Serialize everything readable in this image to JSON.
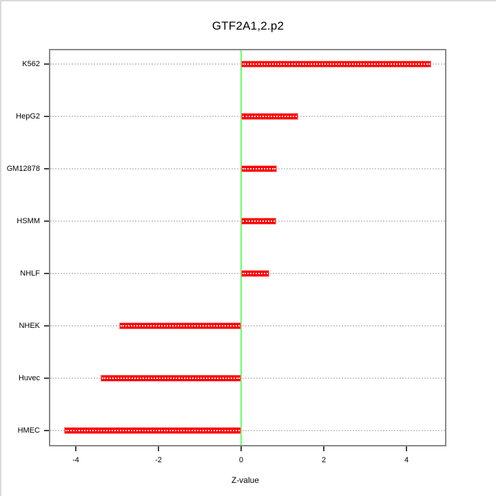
{
  "chart_data": {
    "type": "bar",
    "orientation": "horizontal",
    "title": "GTF2A1,2.p2",
    "xlabel": "Z-value",
    "ylabel": "",
    "categories": [
      "K562",
      "HepG2",
      "GM12878",
      "HSMM",
      "NHLF",
      "NHEK",
      "Huvec",
      "HMEC"
    ],
    "values": [
      4.6,
      1.38,
      0.87,
      0.85,
      0.68,
      -2.95,
      -3.4,
      -4.28
    ],
    "x_ticks": [
      -4,
      -2,
      0,
      2,
      4
    ],
    "xlim": [
      -4.65,
      4.97
    ],
    "grid": "horizontal-dotted",
    "zero_reference_line": 0,
    "legend": "none",
    "colors": {
      "bar_fill": "#ff0000",
      "bar_border": "#ff9b9b",
      "zero_line": "#66ff66",
      "grid_dots": "#cdcdcd",
      "frame": "#878787",
      "text": "#000000"
    }
  }
}
